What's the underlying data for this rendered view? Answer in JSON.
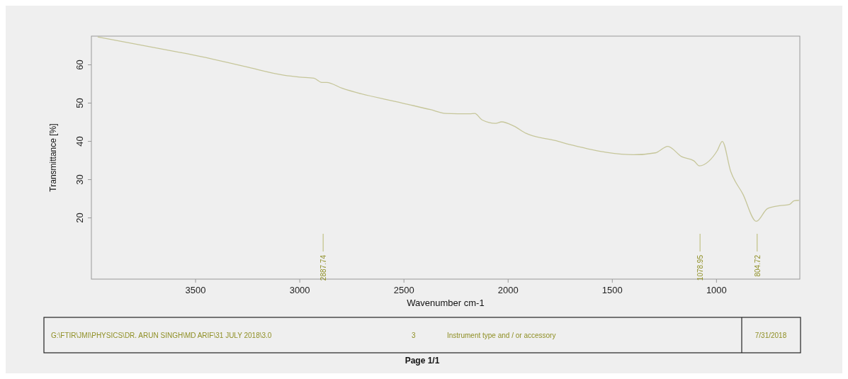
{
  "chart_data": {
    "type": "line",
    "xlabel": "Wavenumber cm-1",
    "ylabel": "Transmittance [%]",
    "xlim": [
      4000,
      600
    ],
    "ylim": [
      4,
      67.5
    ],
    "xticks": [
      3500,
      3000,
      2500,
      2000,
      1500,
      1000
    ],
    "yticks": [
      20,
      30,
      40,
      50,
      60
    ],
    "series": [
      {
        "color": "#c6c69a",
        "x": [
          3970,
          3600,
          3478,
          3259,
          3077,
          3000,
          2932,
          2895,
          2871,
          2798,
          2507,
          2373,
          2301,
          2184,
          2160,
          2125,
          2060,
          2031,
          1973,
          1914,
          1773,
          1691,
          1527,
          1398,
          1293,
          1234,
          1167,
          1108,
          1082,
          1037,
          996,
          972,
          932,
          873,
          809,
          756,
          709,
          650,
          627,
          604
        ],
        "values": [
          67.3,
          63.5,
          62.2,
          59.5,
          57.3,
          56.8,
          56.5,
          55.4,
          55.4,
          53.9,
          50.0,
          48.3,
          47.3,
          47.2,
          47.3,
          45.6,
          44.7,
          45.1,
          44.0,
          42.1,
          40.2,
          39.0,
          37.1,
          36.5,
          37.0,
          38.7,
          36.0,
          34.9,
          33.6,
          34.8,
          37.6,
          40.0,
          32.2,
          26.2,
          19.1,
          22.4,
          23.1,
          23.5,
          24.5,
          24.6
        ]
      }
    ],
    "annotations": [
      {
        "text": "2887.74",
        "x": 2887.74
      },
      {
        "text": "1078.95",
        "x": 1078.95
      },
      {
        "text": "804.72",
        "x": 804.72
      },
      "G:\\FTIR\\JMI\\PHYSICS\\DR. ARUN SINGH\\MD ARIF\\31 JULY 2018\\3.0",
      "3",
      "Instrument type and / or accessory",
      "7/31/2018",
      "Page 1/1"
    ]
  }
}
